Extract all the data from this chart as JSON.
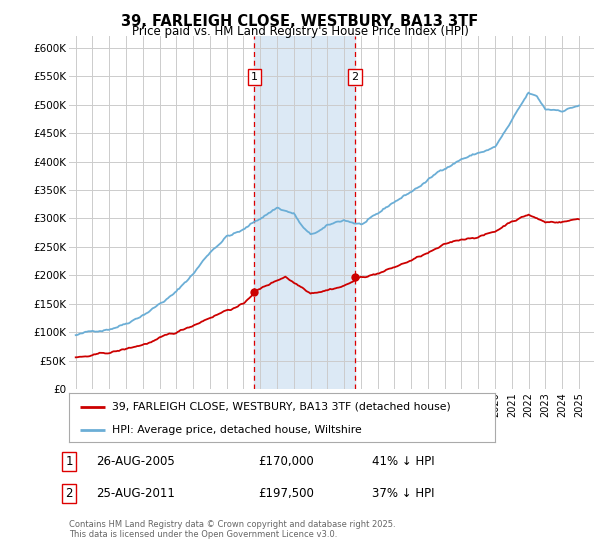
{
  "title": "39, FARLEIGH CLOSE, WESTBURY, BA13 3TF",
  "subtitle": "Price paid vs. HM Land Registry's House Price Index (HPI)",
  "ylim": [
    0,
    620000
  ],
  "yticks": [
    0,
    50000,
    100000,
    150000,
    200000,
    250000,
    300000,
    350000,
    400000,
    450000,
    500000,
    550000,
    600000
  ],
  "ytick_labels": [
    "£0",
    "£50K",
    "£100K",
    "£150K",
    "£200K",
    "£250K",
    "£300K",
    "£350K",
    "£400K",
    "£450K",
    "£500K",
    "£550K",
    "£600K"
  ],
  "hpi_color": "#6baed6",
  "property_color": "#cc0000",
  "vline_color": "#dd0000",
  "shade_color": "#dce9f5",
  "sale1_year": 2005.65,
  "sale1_price": 170000,
  "sale2_year": 2011.65,
  "sale2_price": 197500,
  "legend_property": "39, FARLEIGH CLOSE, WESTBURY, BA13 3TF (detached house)",
  "legend_hpi": "HPI: Average price, detached house, Wiltshire",
  "table_rows": [
    {
      "num": "1",
      "date": "26-AUG-2005",
      "price": "£170,000",
      "pct": "41% ↓ HPI"
    },
    {
      "num": "2",
      "date": "25-AUG-2011",
      "price": "£197,500",
      "pct": "37% ↓ HPI"
    }
  ],
  "footer": "Contains HM Land Registry data © Crown copyright and database right 2025.\nThis data is licensed under the Open Government Licence v3.0.",
  "background_color": "#ffffff",
  "grid_color": "#cccccc"
}
